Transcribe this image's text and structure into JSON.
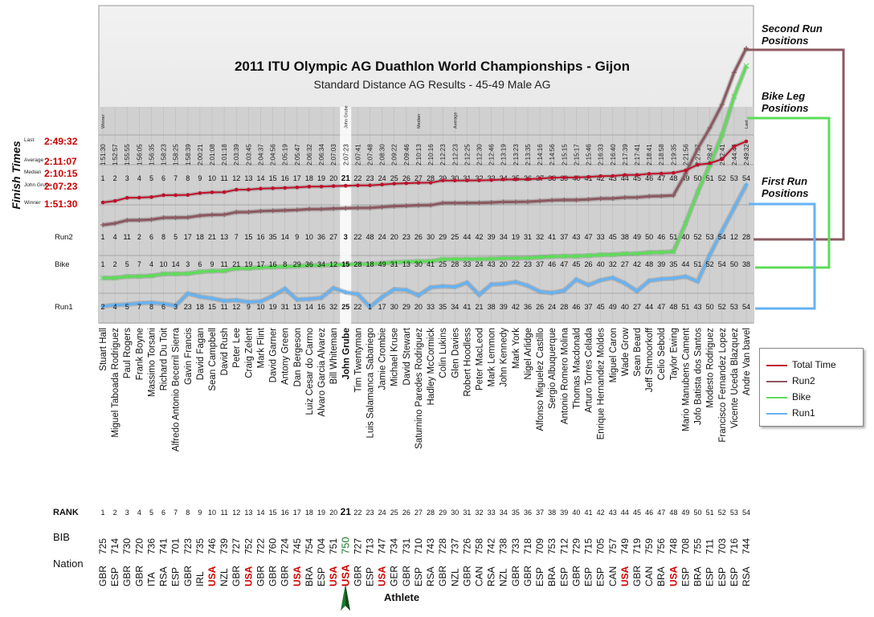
{
  "chart_data": {
    "type": "line",
    "title": "2011 ITU Olympic AG Duathlon World Championships - Gijon",
    "subtitle": "Standard Distance AG Results - 45-49 Male AG",
    "y_axis_label": "Finish Times",
    "x_axis_label": "Athlete",
    "legend_placement": "right",
    "grid": true,
    "highlight_athlete": "John Grube",
    "highlight_rank": 21,
    "time_markers": [
      {
        "label": "Last",
        "time": "2:49:32"
      },
      {
        "label": "Average",
        "time": "2:11:07"
      },
      {
        "label": "Median",
        "time": "2:10:15"
      },
      {
        "label": "John Grube",
        "time": "2:07:23"
      },
      {
        "label": "Winner",
        "time": "1:51:30"
      }
    ],
    "column_tags": [
      {
        "rank": 1,
        "text": "Winner"
      },
      {
        "rank": 21,
        "text": "John Grube"
      },
      {
        "rank": 27,
        "text": "Median"
      },
      {
        "rank": 30,
        "text": "Average"
      },
      {
        "rank": 54,
        "text": "Last"
      }
    ],
    "row_labels": {
      "run2": "Run2",
      "bike": "Bike",
      "run1": "Run1"
    },
    "annotations": {
      "second_run": "Second Run Positions",
      "bike_leg": "Bike Leg Positions",
      "first_run": "First Run Positions"
    },
    "finish_times": [
      "1:51:30",
      "1:52:57",
      "1:55:55",
      "1:56:05",
      "1:56:35",
      "1:58:23",
      "1:58:25",
      "1:58:39",
      "2:00:21",
      "2:01:08",
      "2:01:18",
      "2:03:39",
      "2:03:45",
      "2:04:37",
      "2:04:56",
      "2:05:19",
      "2:05:47",
      "2:06:32",
      "2:06:34",
      "2:07:03",
      "2:07:23",
      "2:07:41",
      "2:07:48",
      "2:08:30",
      "2:09:22",
      "2:09:46",
      "2:10:13",
      "2:10:16",
      "2:12:23",
      "2:12:23",
      "2:12:25",
      "2:12:30",
      "2:12:46",
      "2:13:19",
      "2:13:23",
      "2:13:35",
      "2:14:16",
      "2:14:56",
      "2:15:15",
      "2:15:17",
      "2:15:46",
      "2:16:33",
      "2:16:40",
      "2:17:39",
      "2:17:41",
      "2:18:41",
      "2:18:58",
      "2:19:35",
      "2:21:56",
      "2:27:17",
      "2:28:47",
      "2:32:41",
      "2:44:46",
      "2:49:32"
    ],
    "ranks": [
      1,
      2,
      3,
      4,
      5,
      6,
      7,
      8,
      9,
      10,
      11,
      12,
      13,
      14,
      15,
      16,
      17,
      18,
      19,
      20,
      21,
      22,
      23,
      24,
      25,
      26,
      27,
      28,
      29,
      30,
      31,
      32,
      33,
      34,
      35,
      36,
      37,
      38,
      39,
      40,
      41,
      42,
      43,
      44,
      45,
      46,
      47,
      48,
      49,
      50,
      51,
      52,
      53,
      54
    ],
    "athletes": [
      "Stuart Hall",
      "Miguel Taboada Rodriguez",
      "Paul Rogers",
      "Frank Boyne",
      "Massimo Torsani",
      "Richard Du Toit",
      "Alfredo Antonio Becerril Sierra",
      "Gavin Francis",
      "David Fagan",
      "Sean Campbell",
      "David Rush",
      "Peter Lee",
      "Craig Zelent",
      "Mark Flint",
      "David Garner",
      "Antony Green",
      "Dan Bergeson",
      "Luiz Cesar do Carmo",
      "Alvaro Garcia Alvarez",
      "Bill Whiteman",
      "John Grube",
      "Tim Twentyman",
      "Luis Salamanca Sabariego",
      "Jamie Crombie",
      "Michael Kruse",
      "David Stewart",
      "Saturnino Paredes Rodriguez",
      "Hadley McCormick",
      "Colin Lukins",
      "Glen Davies",
      "Robert Hoodless",
      "Peter MacLeod",
      "Mark Lemmon",
      "John Kennedy",
      "Mark York",
      "Nigel Arlidge",
      "Alfonso Miguelez Castillo",
      "Sergio Albuquerque",
      "Antonio Romero Molina",
      "Thomas Macdonald",
      "Arturo Torres Celada",
      "Enrique Hernandez Moldes",
      "Miguel Caron",
      "Wade Grow",
      "Sean Beard",
      "Jeff Shmoorkoff",
      "Celio Sebold",
      "Taylor Ewing",
      "Mario Manubens Cament",
      "Jofo Batista dos Santos",
      "Modesto Rodriguez",
      "Francisco Fernandez Lopez",
      "Vicente Uceda Blazquez",
      "Andre Van bavel"
    ],
    "nations": [
      "GBR",
      "ESP",
      "GBR",
      "GBR",
      "ITA",
      "RSA",
      "ESP",
      "GBR",
      "IRL",
      "USA",
      "NZL",
      "GBR",
      "USA",
      "GBR",
      "GBR",
      "GBR",
      "USA",
      "BRA",
      "ESP",
      "USA",
      "USA",
      "GBR",
      "ESP",
      "USA",
      "GER",
      "GBR",
      "ESP",
      "RSA",
      "GBR",
      "NZL",
      "GBR",
      "CAN",
      "RSA",
      "NZL",
      "GBR",
      "GBR",
      "ESP",
      "BRA",
      "ESP",
      "GBR",
      "ESP",
      "ESP",
      "CAN",
      "USA",
      "GBR",
      "CAN",
      "BRA",
      "USA",
      "ESP",
      "BRA",
      "ESP",
      "ESP",
      "ESP",
      "RSA"
    ],
    "bibs": [
      "725",
      "714",
      "730",
      "720",
      "736",
      "741",
      "701",
      "723",
      "735",
      "746",
      "739",
      "727",
      "752",
      "722",
      "760",
      "724",
      "745",
      "754",
      "704",
      "751",
      "750",
      "727",
      "713",
      "747",
      "734",
      "731",
      "710",
      "743",
      "728",
      "737",
      "726",
      "758",
      "742",
      "738",
      "733",
      "718",
      "709",
      "753",
      "712",
      "729",
      "715",
      "705",
      "757",
      "749",
      "719",
      "759",
      "756",
      "748",
      "708",
      "755",
      "711",
      "703",
      "716",
      "744"
    ],
    "run2_positions": [
      1,
      4,
      11,
      2,
      6,
      8,
      5,
      17,
      18,
      21,
      13,
      7,
      15,
      16,
      35,
      14,
      9,
      10,
      36,
      27,
      3,
      22,
      48,
      24,
      20,
      23,
      26,
      30,
      29,
      25,
      44,
      42,
      39,
      34,
      19,
      31,
      32,
      41,
      37,
      43,
      47,
      33,
      45,
      38,
      49,
      50,
      46,
      51,
      40,
      52,
      53,
      54,
      12,
      28
    ],
    "bike_positions": [
      1,
      2,
      5,
      7,
      4,
      10,
      14,
      3,
      6,
      9,
      11,
      21,
      19,
      17,
      16,
      8,
      29,
      36,
      34,
      12,
      15,
      28,
      18,
      49,
      31,
      13,
      30,
      41,
      25,
      28,
      33,
      24,
      43,
      20,
      22,
      23,
      37,
      46,
      47,
      45,
      26,
      40,
      32,
      27,
      42,
      48,
      39,
      35,
      44,
      51,
      52,
      54,
      50,
      38
    ],
    "run1_positions": [
      2,
      4,
      5,
      7,
      8,
      6,
      3,
      23,
      18,
      15,
      11,
      12,
      9,
      10,
      19,
      31,
      13,
      14,
      16,
      32,
      25,
      22,
      1,
      17,
      30,
      29,
      20,
      33,
      35,
      34,
      41,
      21,
      38,
      39,
      42,
      36,
      26,
      24,
      28,
      46,
      37,
      45,
      49,
      40,
      27,
      44,
      47,
      48,
      51,
      43,
      50,
      52,
      53,
      54
    ]
  },
  "footer": {
    "rank_label": "RANK",
    "bib_label": "BIB",
    "nation_label": "Nation"
  },
  "legend": {
    "items": [
      {
        "label": "Total Time",
        "color": "#c0102a",
        "icon": "circle-marker-icon"
      },
      {
        "label": "Run2",
        "color": "#8c5a62",
        "icon": "plus-marker-icon"
      },
      {
        "label": "Bike",
        "color": "#5ddc58",
        "icon": "x-marker-icon"
      },
      {
        "label": "Run1",
        "color": "#66b2f2",
        "icon": "diamond-marker-icon"
      }
    ]
  },
  "colors": {
    "total": "#c0102a",
    "run2": "#8c5a62",
    "bike": "#5ddc58",
    "run1": "#66b2f2",
    "usa": "#d40000",
    "highlight": "#1e7a2e"
  }
}
